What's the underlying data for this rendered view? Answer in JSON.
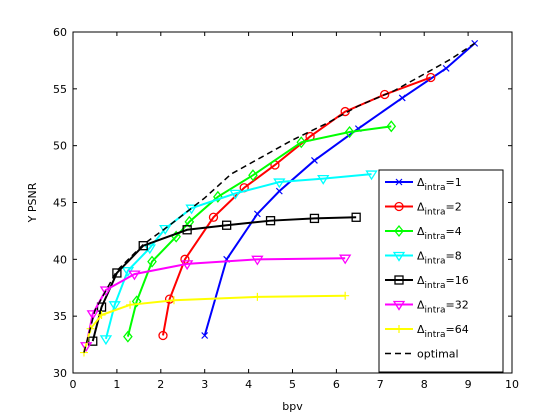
{
  "chart_data": {
    "type": "line",
    "xlabel": "bpv",
    "ylabel": "Y PSNR",
    "xlim": [
      0,
      10
    ],
    "ylim": [
      30,
      60
    ],
    "xticks": [
      "0",
      "1",
      "2",
      "3",
      "4",
      "5",
      "6",
      "7",
      "8",
      "9",
      "10"
    ],
    "yticks": [
      "30",
      "35",
      "40",
      "45",
      "50",
      "55",
      "60"
    ],
    "grid": false,
    "legend_position": "right",
    "series": [
      {
        "name_main": "Δ",
        "name_sub": "intra",
        "name_suffix": "=1",
        "color": "#0000ff",
        "marker": "x",
        "x": [
          3.0,
          3.5,
          4.2,
          4.7,
          5.5,
          6.5,
          7.5,
          8.5,
          9.15
        ],
        "y": [
          33.3,
          40.0,
          44.0,
          46.0,
          48.7,
          51.5,
          54.2,
          56.8,
          59.0
        ]
      },
      {
        "name_main": "Δ",
        "name_sub": "intra",
        "name_suffix": "=2",
        "color": "#ff0000",
        "marker": "o",
        "x": [
          2.05,
          2.2,
          2.55,
          3.2,
          3.9,
          4.6,
          5.4,
          6.2,
          7.1,
          8.15
        ],
        "y": [
          33.3,
          36.5,
          40.0,
          43.7,
          46.3,
          48.3,
          50.8,
          53.0,
          54.5,
          56.0
        ]
      },
      {
        "name_main": "Δ",
        "name_sub": "intra",
        "name_suffix": "=4",
        "color": "#00ff00",
        "marker": "d",
        "x": [
          1.25,
          1.45,
          1.8,
          2.35,
          2.65,
          3.3,
          4.1,
          5.2,
          6.3,
          7.25
        ],
        "y": [
          33.2,
          36.3,
          39.8,
          42.0,
          43.3,
          45.5,
          47.4,
          50.3,
          51.2,
          51.7
        ]
      },
      {
        "name_main": "Δ",
        "name_sub": "intra",
        "name_suffix": "=8",
        "color": "#00ffff",
        "marker": "v",
        "x": [
          0.75,
          0.95,
          1.25,
          1.75,
          2.1,
          2.7,
          3.7,
          4.7,
          5.7,
          6.8
        ],
        "y": [
          33.0,
          36.0,
          39.0,
          41.0,
          42.7,
          44.5,
          45.8,
          46.8,
          47.1,
          47.5
        ]
      },
      {
        "name_main": "Δ",
        "name_sub": "intra",
        "name_suffix": "=16",
        "color": "#000000",
        "marker": "s",
        "x": [
          0.45,
          0.65,
          1.0,
          1.6,
          2.6,
          3.5,
          4.5,
          5.5,
          6.45
        ],
        "y": [
          32.8,
          35.8,
          38.8,
          41.2,
          42.6,
          43.0,
          43.4,
          43.6,
          43.7
        ]
      },
      {
        "name_main": "Δ",
        "name_sub": "intra",
        "name_suffix": "=32",
        "color": "#ff00ff",
        "marker": "v",
        "x": [
          0.3,
          0.45,
          0.75,
          1.4,
          2.6,
          4.2,
          6.2
        ],
        "y": [
          32.4,
          35.2,
          37.3,
          38.7,
          39.6,
          40.0,
          40.1
        ]
      },
      {
        "name_main": "Δ",
        "name_sub": "intra",
        "name_suffix": "=64",
        "color": "#ffff00",
        "marker": "+",
        "x": [
          0.25,
          0.4,
          0.65,
          1.3,
          2.3,
          4.2,
          6.2
        ],
        "y": [
          31.8,
          33.9,
          35.1,
          36.0,
          36.4,
          36.7,
          36.8
        ]
      },
      {
        "name_main": "optimal",
        "name_sub": "",
        "name_suffix": "",
        "color": "#000000",
        "marker": "none",
        "dashed": true,
        "x": [
          0.25,
          0.5,
          1.0,
          1.6,
          2.2,
          3.0,
          3.6,
          4.3,
          5.0,
          5.8,
          6.5,
          7.3,
          8.0,
          8.6,
          9.15
        ],
        "y": [
          31.8,
          35.5,
          39.0,
          41.3,
          43.0,
          45.4,
          47.5,
          49.0,
          50.5,
          52.0,
          53.5,
          54.8,
          56.3,
          57.6,
          59.0
        ]
      }
    ]
  }
}
